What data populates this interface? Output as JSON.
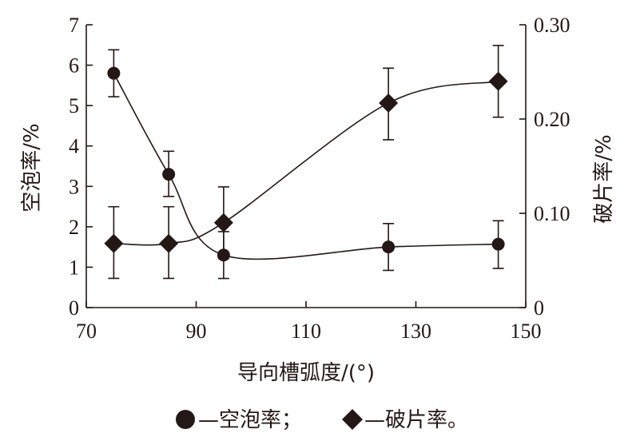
{
  "chart_data": {
    "type": "line",
    "xlabel": "导向槽弧度/(°)",
    "ylabel_left": "空泡率/%",
    "ylabel_right": "破片率/%",
    "xlim": [
      70,
      150
    ],
    "xticks": [
      70,
      90,
      110,
      130,
      150
    ],
    "ylim_left": [
      0,
      7
    ],
    "yticks_left": [
      0,
      1,
      2,
      3,
      4,
      5,
      6,
      7
    ],
    "ylim_right": [
      0,
      0.3
    ],
    "yticks_right": [
      "0",
      "0.10",
      "0.20",
      "0.30"
    ],
    "grid": false,
    "series": [
      {
        "name": "空泡率",
        "axis": "left",
        "marker": "circle",
        "x": [
          75,
          85,
          95,
          125,
          145
        ],
        "y": [
          5.8,
          3.3,
          1.3,
          1.5,
          1.57
        ],
        "err_low": [
          5.22,
          2.75,
          0.72,
          0.92,
          0.97
        ],
        "err_high": [
          6.38,
          3.87,
          1.88,
          2.08,
          2.15
        ]
      },
      {
        "name": "破片率",
        "axis": "right",
        "marker": "diamond",
        "x": [
          75,
          85,
          95,
          125,
          145
        ],
        "y": [
          0.068,
          0.068,
          0.09,
          0.217,
          0.24
        ],
        "err_low": [
          0.031,
          0.031,
          0.052,
          0.178,
          0.202
        ],
        "err_high": [
          0.107,
          0.107,
          0.128,
          0.254,
          0.278
        ]
      }
    ],
    "legend": {
      "placement": "bottom",
      "items": [
        {
          "marker": "circle",
          "text": "—空泡率；"
        },
        {
          "marker": "diamond",
          "text": "—破片率。"
        }
      ]
    },
    "colors": {
      "ink": "#231815",
      "background": "#ffffff"
    }
  }
}
